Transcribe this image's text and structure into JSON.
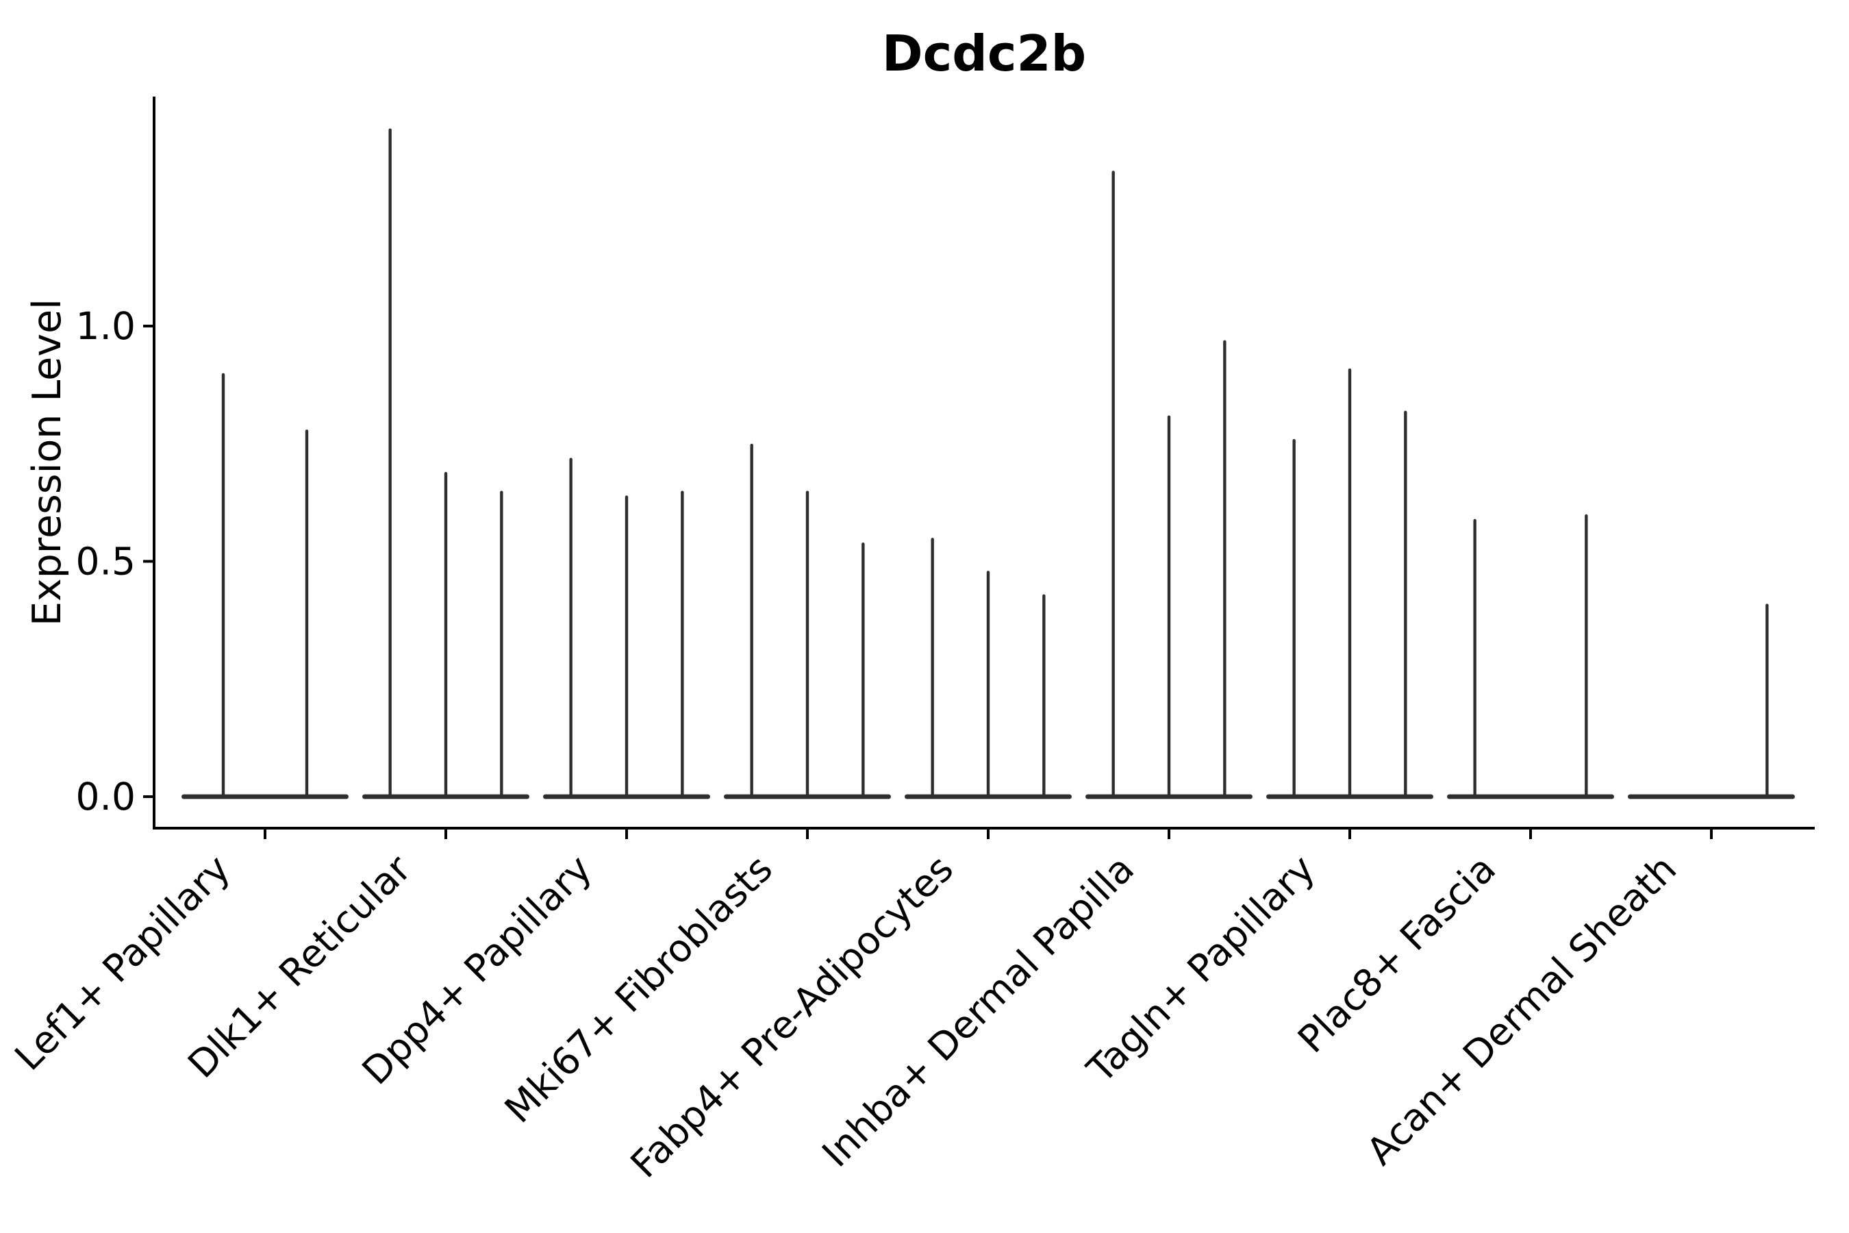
{
  "figure": {
    "background": "#ffffff"
  },
  "chart_data": {
    "type": "violin",
    "title": "Dcdc2b",
    "xlabel": "",
    "ylabel": "Expression Level",
    "yticks": [
      {
        "value": 0.0,
        "label": "0.0"
      },
      {
        "value": 0.5,
        "label": "0.5"
      },
      {
        "value": 1.0,
        "label": "1.0"
      }
    ],
    "ylim": [
      -0.07,
      1.49
    ],
    "grid": false,
    "legend_position": "none",
    "colors": {
      "violin": "#2e2e2e",
      "axis": "#000000",
      "text": "#000000",
      "background": "#ffffff"
    },
    "description": "Violin plot of Dcdc2b expression; each violin is a near-zero-width spike (sparse expression) with a wide flat base at 0. Values are the peak (max) expression level per violin; null means all-zero flat violin.",
    "groups": [
      {
        "label": "Lef1+ Papillary",
        "violin_peaks": [
          0.9,
          0.78
        ]
      },
      {
        "label": "Dlk1+ Reticular",
        "violin_peaks": [
          1.42,
          0.69,
          0.65
        ]
      },
      {
        "label": "Dpp4+ Papillary",
        "violin_peaks": [
          0.72,
          0.64,
          0.65
        ]
      },
      {
        "label": "Mki67+ Fibroblasts",
        "violin_peaks": [
          0.75,
          0.65,
          0.54
        ]
      },
      {
        "label": "Fabp4+ Pre-Adipocytes",
        "violin_peaks": [
          0.55,
          0.48,
          0.43
        ]
      },
      {
        "label": "Inhba+ Dermal Papilla",
        "violin_peaks": [
          1.33,
          0.81,
          0.97
        ]
      },
      {
        "label": "Tagln+ Papillary",
        "violin_peaks": [
          0.76,
          0.91,
          0.82
        ]
      },
      {
        "label": "Plac8+ Fascia",
        "violin_peaks": [
          0.59,
          null,
          0.6
        ]
      },
      {
        "label": "Acan+ Dermal Sheath",
        "violin_peaks": [
          null,
          null,
          0.41
        ]
      }
    ]
  }
}
